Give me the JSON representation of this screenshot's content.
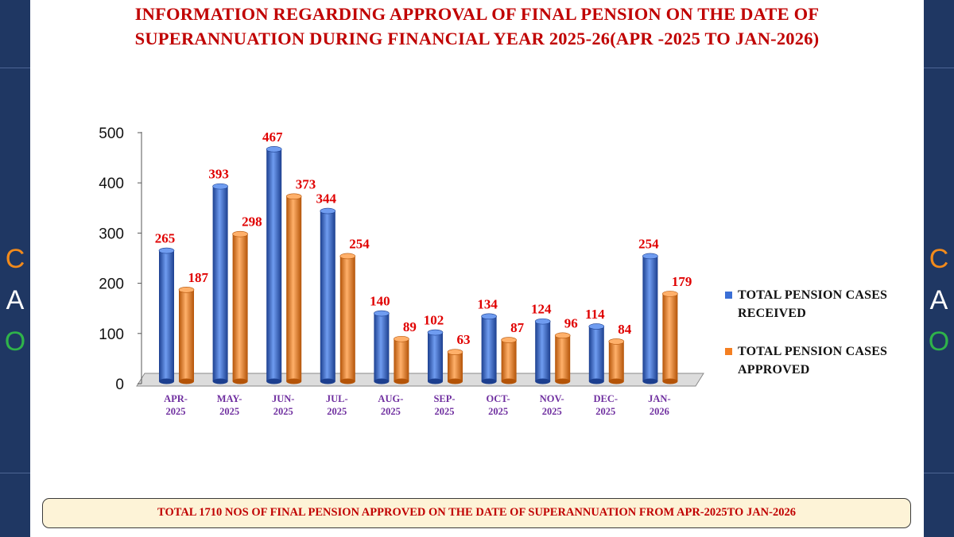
{
  "title_line1": "INFORMATION REGARDING APPROVAL OF FINAL PENSION ON THE DATE OF",
  "title_line2": "SUPERANNUATION  DURING FINANCIAL YEAR 2025-26(APR -2025 TO JAN-2026)",
  "side_letters": [
    "C",
    "A",
    "O"
  ],
  "colors": {
    "title": "#c00000",
    "received": "#3b6fd6",
    "approved": "#f47f22",
    "data_labels": "#e00000",
    "category_labels": "#7030a0",
    "side_band": "#1f3763",
    "letter_c": "#f28a1b",
    "letter_a": "#ffffff",
    "letter_o": "#2fb34a"
  },
  "chart_data": {
    "type": "bar",
    "style": "3d-cylinder",
    "categories": [
      [
        "APR-",
        "2025"
      ],
      [
        "MAY-",
        "2025"
      ],
      [
        "JUN-",
        "2025"
      ],
      [
        "JUL-",
        "2025"
      ],
      [
        "AUG-",
        "2025"
      ],
      [
        "SEP-",
        "2025"
      ],
      [
        "OCT-",
        "2025"
      ],
      [
        "NOV-",
        "2025"
      ],
      [
        "DEC-",
        "2025"
      ],
      [
        "JAN-",
        "2026"
      ]
    ],
    "series": [
      {
        "name": "TOTAL PENSION CASES RECEIVED",
        "values": [
          265,
          393,
          467,
          344,
          140,
          102,
          134,
          124,
          114,
          254
        ]
      },
      {
        "name": "TOTAL PENSION CASES APPROVED",
        "values": [
          187,
          298,
          373,
          254,
          89,
          63,
          87,
          96,
          84,
          179
        ]
      }
    ],
    "yticks": [
      0,
      100,
      200,
      300,
      400,
      500
    ],
    "ylim": [
      0,
      500
    ],
    "grid": false,
    "legend_position": "right"
  },
  "legend": [
    {
      "line1": "TOTAL PENSION CASES",
      "line2": "RECEIVED"
    },
    {
      "line1": "TOTAL PENSION CASES",
      "line2": "APPROVED"
    }
  ],
  "footer": "TOTAL 1710  NOS OF FINAL PENSION APPROVED ON THE DATE OF SUPERANNUATION FROM APR-2025TO JAN-2026"
}
